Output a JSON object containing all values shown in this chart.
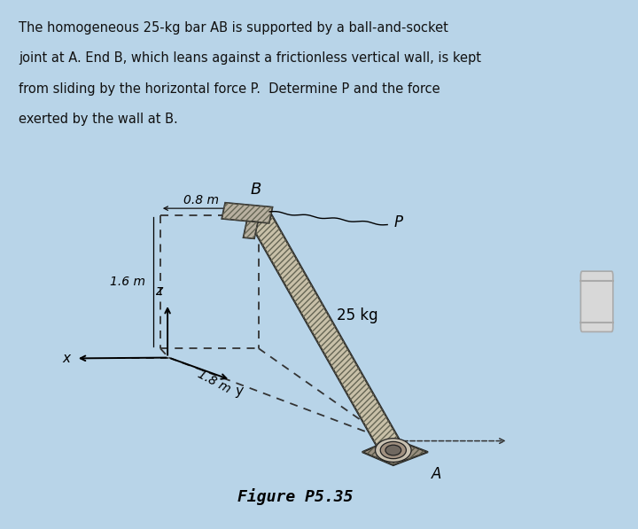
{
  "bg_color": "#b8d4e8",
  "paper_color": "#f0ede4",
  "title_text_lines": [
    "The homogeneous 25-kg bar AB is supported by a ball-and-socket",
    "joint at A. End B, which leans against a frictionless vertical wall, is kept",
    "from sliding by the horizontal force P.  Determine P and the force",
    "exerted by the wall at B."
  ],
  "figure_label": "Figure P5.35",
  "dim_08": "0.8 m",
  "dim_16": "1.6 m",
  "dim_18": "1.8 m",
  "label_B": "B",
  "label_P": "P",
  "label_A": "A",
  "label_25kg": "25 kg",
  "label_x": "x",
  "label_y": "y",
  "label_z": "z",
  "dashed_color": "#333333",
  "bar_fill": "#c8c0a8",
  "bar_edge": "#222222",
  "bracket_fill": "#b8b0a0",
  "base_fill": "#888070",
  "scrollbar_color": "#d0d0d0"
}
